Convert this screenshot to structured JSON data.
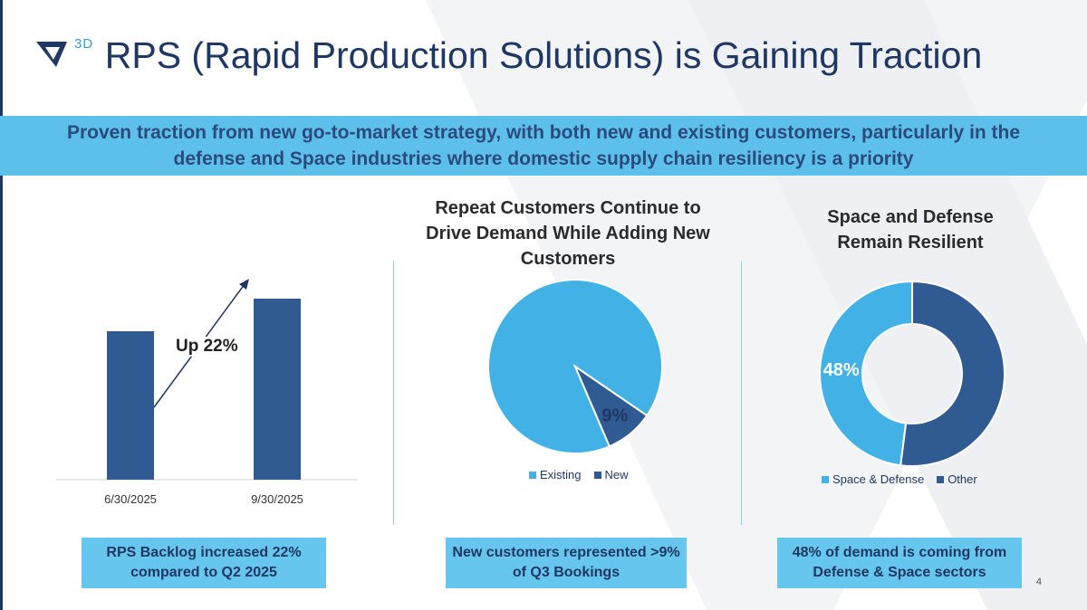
{
  "header": {
    "logo_text": "3D",
    "title": "RPS (Rapid Production Solutions) is Gaining Traction"
  },
  "banner": {
    "text": "Proven traction from new go-to-market strategy, with both new and existing customers, particularly in the defense and Space industries where domestic supply chain resiliency is a priority"
  },
  "panels": {
    "backlog": {
      "annotation": "Up 22%",
      "callout": "RPS Backlog increased 22% compared to Q2 2025"
    },
    "customers": {
      "title": "Repeat Customers Continue to Drive Demand While Adding New Customers",
      "callout": "New customers represented >9% of Q3 Bookings"
    },
    "sectors": {
      "title": "Space and Defense Remain Resilient",
      "callout": "48% of demand is coming from Defense & Space sectors"
    }
  },
  "page_number": "4",
  "colors": {
    "dark_blue": "#2f5a92",
    "light_blue": "#42b2e6",
    "banner": "#5cc0ea",
    "title": "#1f3763"
  },
  "chart_data": [
    {
      "type": "bar",
      "categories": [
        "6/30/2025",
        "9/30/2025"
      ],
      "values": [
        82,
        100
      ],
      "ylim": [
        0,
        120
      ],
      "annotation": "Up 22%"
    },
    {
      "type": "pie",
      "labels": [
        "Existing",
        "New"
      ],
      "values": [
        91,
        9
      ],
      "data_labels": [
        "",
        "9%"
      ],
      "legend": "bottom"
    },
    {
      "type": "pie",
      "donut": true,
      "labels": [
        "Space & Defense",
        "Other"
      ],
      "values": [
        48,
        52
      ],
      "data_labels": [
        "48%",
        ""
      ],
      "legend": "bottom"
    }
  ]
}
